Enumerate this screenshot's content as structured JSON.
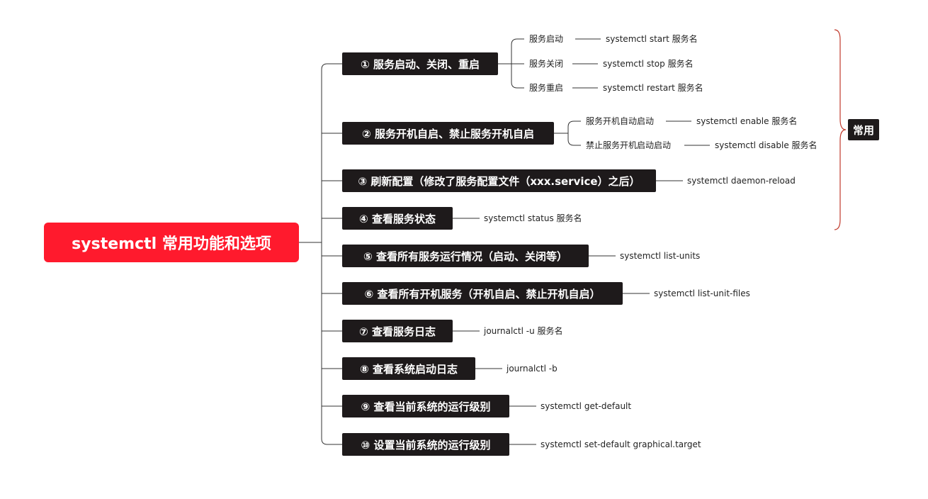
{
  "root": {
    "label": "systemctl 常用功能和选项"
  },
  "tag": {
    "label": "常用"
  },
  "colors": {
    "root_bg": "#ff1a2d",
    "branch_bg": "#1e1a1b",
    "brace": "#c0392b",
    "line": "#333333"
  },
  "branches": [
    {
      "label": "① 服务启动、关闭、重启",
      "children": [
        {
          "label": "服务启动",
          "command": "systemctl  start 服务名"
        },
        {
          "label": "服务关闭",
          "command": "systemctl stop 服务名"
        },
        {
          "label": "服务重启",
          "command": "systemctl restart 服务名"
        }
      ]
    },
    {
      "label": "② 服务开机自启、禁止服务开机自启",
      "children": [
        {
          "label": "服务开机自动启动",
          "command": "systemctl  enable 服务名"
        },
        {
          "label": "禁止服务开机启动启动",
          "command": "systemctl disable 服务名"
        }
      ]
    },
    {
      "label": "③ 刷新配置（修改了服务配置文件（xxx.service）之后）",
      "command": "systemctl daemon-reload"
    },
    {
      "label": "④ 查看服务状态",
      "command": "systemctl status 服务名"
    },
    {
      "label": "⑤ 查看所有服务运行情况（启动、关闭等）",
      "command": "systemctl list-units"
    },
    {
      "label": "⑥ 查看所有开机服务（开机自启、禁止开机自启）",
      "command": "systemctl list-unit-files"
    },
    {
      "label": "⑦ 查看服务日志",
      "command": "journalctl -u 服务名"
    },
    {
      "label": "⑧ 查看系统启动日志",
      "command": "journalctl -b"
    },
    {
      "label": "⑨ 查看当前系统的运行级别",
      "command": "systemctl get-default"
    },
    {
      "label": "⑩ 设置当前系统的运行级别",
      "command": "systemctl set-default graphical.target"
    }
  ]
}
